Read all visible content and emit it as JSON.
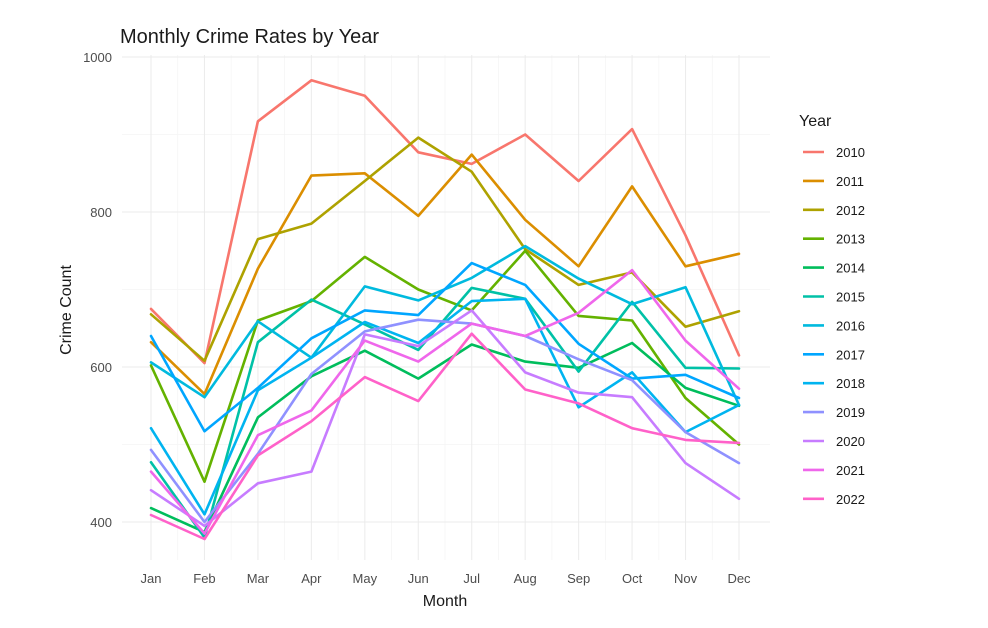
{
  "chart_data": {
    "type": "line",
    "title": "Monthly Crime Rates by Year",
    "xlabel": "Month",
    "ylabel": "Crime Count",
    "categories": [
      "Jan",
      "Feb",
      "Mar",
      "Apr",
      "May",
      "Jun",
      "Jul",
      "Aug",
      "Sep",
      "Oct",
      "Nov",
      "Dec"
    ],
    "ylim": [
      345,
      1000
    ],
    "yticks": [
      400,
      600,
      800,
      1000
    ],
    "grid": true,
    "legend": {
      "title": "Year",
      "position": "right"
    },
    "series": [
      {
        "name": "2010",
        "color": "#F8766D",
        "values": [
          675,
          605,
          917,
          970,
          950,
          877,
          862,
          900,
          840,
          907,
          770,
          615
        ]
      },
      {
        "name": "2011",
        "color": "#DB8E00",
        "values": [
          632,
          565,
          727,
          847,
          850,
          795,
          874,
          790,
          730,
          833,
          730,
          746
        ]
      },
      {
        "name": "2012",
        "color": "#AEA200",
        "values": [
          668,
          608,
          765,
          785,
          840,
          896,
          852,
          752,
          706,
          722,
          652,
          672
        ]
      },
      {
        "name": "2013",
        "color": "#64B200",
        "values": [
          602,
          452,
          660,
          685,
          742,
          700,
          673,
          750,
          666,
          660,
          560,
          500
        ]
      },
      {
        "name": "2014",
        "color": "#00BD5C",
        "values": [
          418,
          387,
          535,
          588,
          621,
          585,
          629,
          607,
          599,
          631,
          573,
          550
        ]
      },
      {
        "name": "2015",
        "color": "#00C1A7",
        "values": [
          477,
          380,
          632,
          687,
          655,
          622,
          702,
          688,
          594,
          684,
          599,
          598
        ]
      },
      {
        "name": "2016",
        "color": "#00BADE",
        "values": [
          606,
          561,
          659,
          612,
          704,
          686,
          715,
          756,
          714,
          681,
          703,
          551
        ]
      },
      {
        "name": "2017",
        "color": "#00A6FF",
        "values": [
          640,
          517,
          573,
          637,
          673,
          667,
          734,
          706,
          630,
          585,
          590,
          560
        ]
      },
      {
        "name": "2018",
        "color": "#00B4F0",
        "values": [
          521,
          410,
          570,
          612,
          658,
          631,
          685,
          688,
          548,
          593,
          516,
          551
        ]
      },
      {
        "name": "2019",
        "color": "#8F91FF",
        "values": [
          493,
          400,
          488,
          591,
          646,
          661,
          656,
          640,
          610,
          583,
          516,
          476
        ]
      },
      {
        "name": "2020",
        "color": "#C77CFF",
        "values": [
          441,
          395,
          450,
          465,
          642,
          627,
          673,
          593,
          567,
          561,
          476,
          430
        ]
      },
      {
        "name": "2021",
        "color": "#EF67EB",
        "values": [
          465,
          385,
          512,
          544,
          634,
          607,
          656,
          640,
          670,
          725,
          634,
          572
        ]
      },
      {
        "name": "2022",
        "color": "#FF61C9",
        "values": [
          409,
          378,
          486,
          530,
          587,
          556,
          643,
          571,
          553,
          521,
          506,
          502
        ]
      }
    ]
  }
}
